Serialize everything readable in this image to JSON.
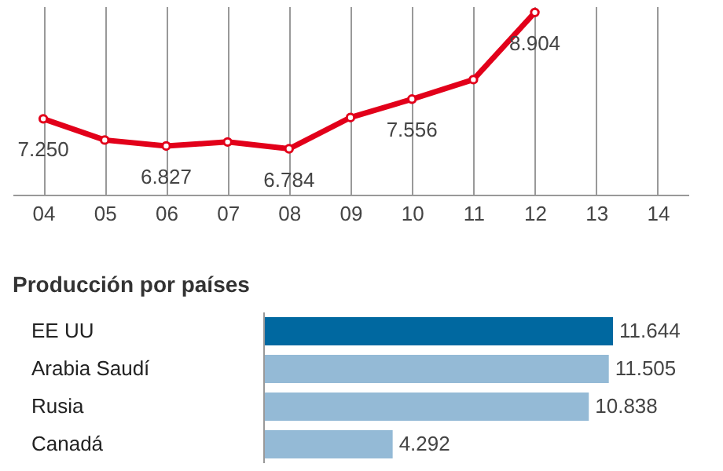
{
  "chart_data": [
    {
      "type": "line",
      "categories": [
        "04",
        "05",
        "06",
        "07",
        "08",
        "09",
        "10",
        "11",
        "12",
        "13",
        "14"
      ],
      "series": [
        {
          "color": "#e2001a",
          "values": [
            7250,
            6920,
            6827,
            6890,
            6784,
            7270,
            7556,
            7860,
            8904,
            null,
            null
          ],
          "value_labels": [
            "7.250",
            null,
            "6.827",
            null,
            "6.784",
            null,
            "7.556",
            null,
            "8.904",
            null,
            null
          ]
        }
      ],
      "ylim": [
        6070,
        9000
      ],
      "tick_labels": "x",
      "grid": "x",
      "marker": "circle",
      "line_style": "solid",
      "legend": false
    },
    {
      "type": "bar",
      "orientation": "horizontal",
      "title": "Producción por países",
      "categories": [
        "EE UU",
        "Arabia Saudí",
        "Rusia",
        "Canadá"
      ],
      "values": [
        11644,
        11505,
        10838,
        4292
      ],
      "colors": [
        "#0068a0",
        "#94bad6",
        "#94bad6",
        "#94bad6"
      ],
      "value_labels": [
        "11.644",
        "11.505",
        "10.838",
        "4.292"
      ],
      "tick_labels": "y",
      "legend": false
    }
  ]
}
